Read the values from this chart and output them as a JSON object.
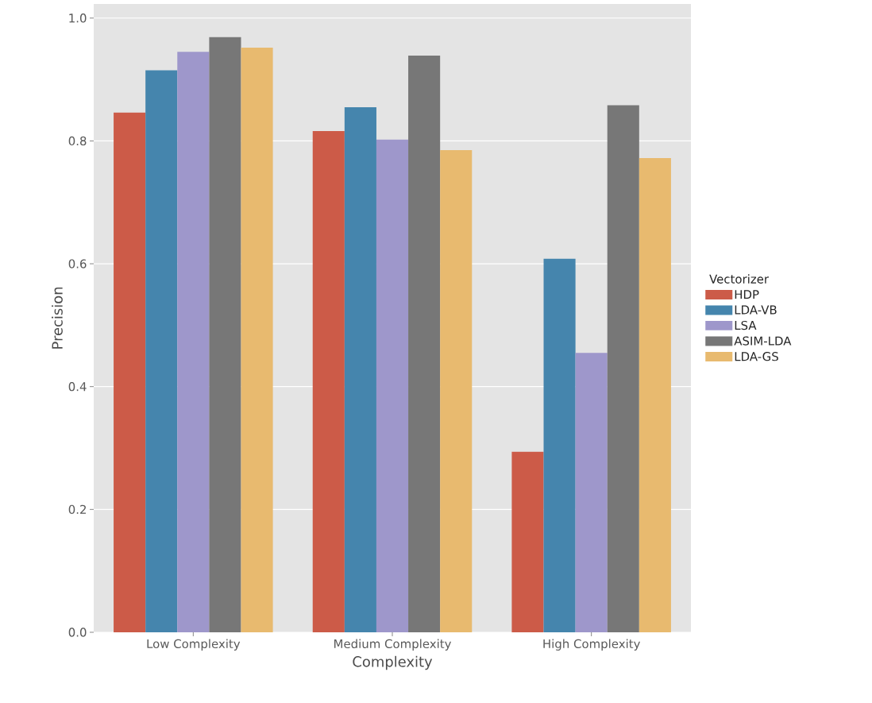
{
  "chart_data": {
    "type": "bar",
    "xlabel": "Complexity",
    "ylabel": "Precision",
    "legend_title": "Vectorizer",
    "categories": [
      "Low Complexity",
      "Medium Complexity",
      "High Complexity"
    ],
    "series": [
      {
        "name": "HDP",
        "color": "#cc5b48",
        "values": [
          0.846,
          0.816,
          0.294
        ]
      },
      {
        "name": "LDA-VB",
        "color": "#4585ad",
        "values": [
          0.915,
          0.855,
          0.608
        ]
      },
      {
        "name": "LSA",
        "color": "#9e97cb",
        "values": [
          0.945,
          0.802,
          0.455
        ]
      },
      {
        "name": "ASIM-LDA",
        "color": "#777777",
        "values": [
          0.969,
          0.939,
          0.858
        ]
      },
      {
        "name": "LDA-GS",
        "color": "#e8ba6f",
        "values": [
          0.952,
          0.785,
          0.772
        ]
      }
    ],
    "ylim": [
      0,
      1.023
    ],
    "yticks": [
      {
        "value": 0,
        "label": "0.0"
      },
      {
        "value": 0.2,
        "label": "0.2"
      },
      {
        "value": 0.4,
        "label": "0.4"
      },
      {
        "value": 0.6,
        "label": "0.6"
      },
      {
        "value": 0.8,
        "label": "0.8"
      },
      {
        "value": 1.0,
        "label": "1.0"
      }
    ],
    "grid": "y",
    "legend": "right"
  }
}
